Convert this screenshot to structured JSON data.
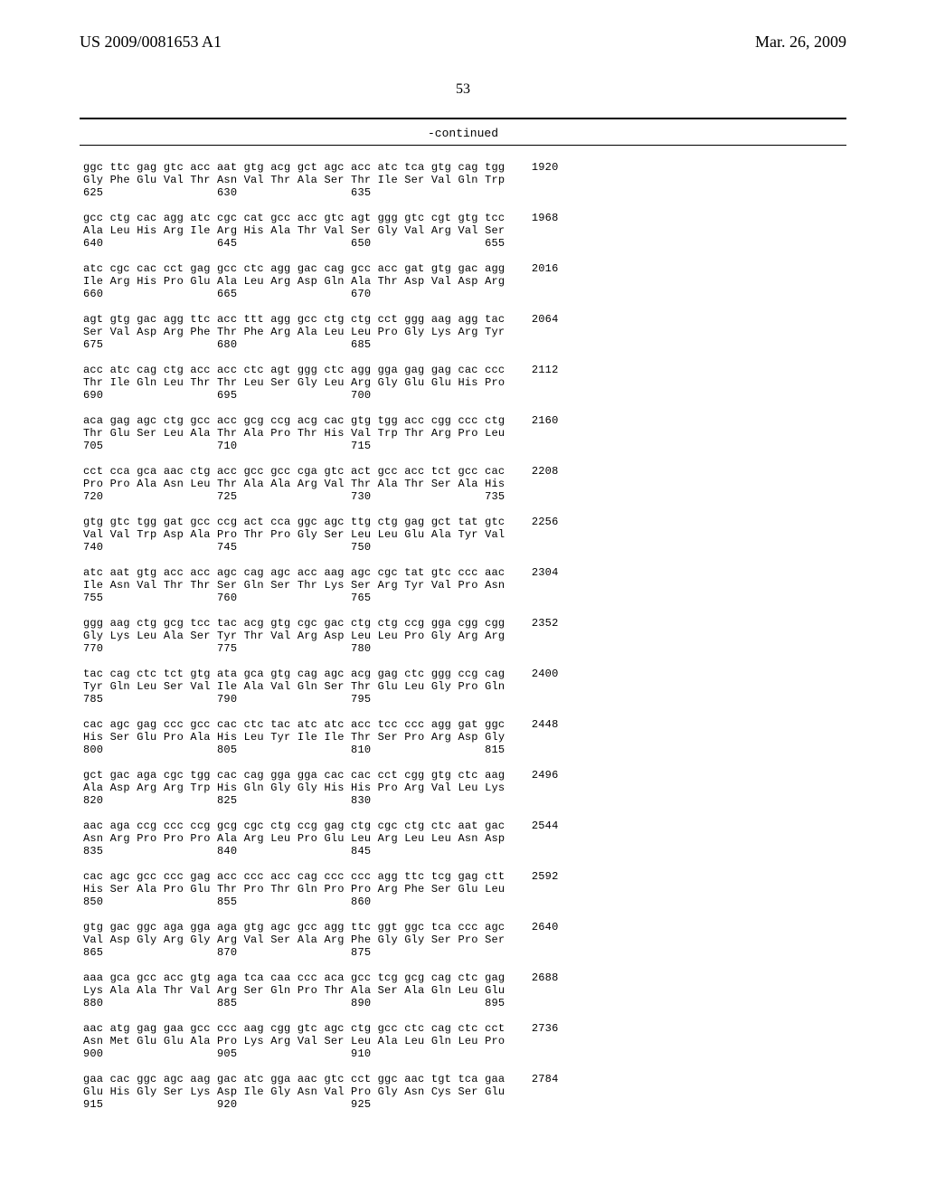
{
  "header": {
    "left": "US 2009/0081653 A1",
    "right": "Mar. 26, 2009"
  },
  "page_number": "53",
  "continued_label": "-continued",
  "blocks": [
    {
      "codon": "ggc ttc gag gtc acc aat gtg acg gct agc acc atc tca gtg cag tgg",
      "amino": "Gly Phe Glu Val Thr Asn Val Thr Ala Ser Thr Ile Ser Val Gln Trp",
      "pos": "625                 630                 635",
      "num": "1920"
    },
    {
      "codon": "gcc ctg cac agg atc cgc cat gcc acc gtc agt ggg gtc cgt gtg tcc",
      "amino": "Ala Leu His Arg Ile Arg His Ala Thr Val Ser Gly Val Arg Val Ser",
      "pos": "640                 645                 650                 655",
      "num": "1968"
    },
    {
      "codon": "atc cgc cac cct gag gcc ctc agg gac cag gcc acc gat gtg gac agg",
      "amino": "Ile Arg His Pro Glu Ala Leu Arg Asp Gln Ala Thr Asp Val Asp Arg",
      "pos": "660                 665                 670",
      "num": "2016"
    },
    {
      "codon": "agt gtg gac agg ttc acc ttt agg gcc ctg ctg cct ggg aag agg tac",
      "amino": "Ser Val Asp Arg Phe Thr Phe Arg Ala Leu Leu Pro Gly Lys Arg Tyr",
      "pos": "675                 680                 685",
      "num": "2064"
    },
    {
      "codon": "acc atc cag ctg acc acc ctc agt ggg ctc agg gga gag gag cac ccc",
      "amino": "Thr Ile Gln Leu Thr Thr Leu Ser Gly Leu Arg Gly Glu Glu His Pro",
      "pos": "690                 695                 700",
      "num": "2112"
    },
    {
      "codon": "aca gag agc ctg gcc acc gcg ccg acg cac gtg tgg acc cgg ccc ctg",
      "amino": "Thr Glu Ser Leu Ala Thr Ala Pro Thr His Val Trp Thr Arg Pro Leu",
      "pos": "705                 710                 715",
      "num": "2160"
    },
    {
      "codon": "cct cca gca aac ctg acc gcc gcc cga gtc act gcc acc tct gcc cac",
      "amino": "Pro Pro Ala Asn Leu Thr Ala Ala Arg Val Thr Ala Thr Ser Ala His",
      "pos": "720                 725                 730                 735",
      "num": "2208"
    },
    {
      "codon": "gtg gtc tgg gat gcc ccg act cca ggc agc ttg ctg gag gct tat gtc",
      "amino": "Val Val Trp Asp Ala Pro Thr Pro Gly Ser Leu Leu Glu Ala Tyr Val",
      "pos": "740                 745                 750",
      "num": "2256"
    },
    {
      "codon": "atc aat gtg acc acc agc cag agc acc aag agc cgc tat gtc ccc aac",
      "amino": "Ile Asn Val Thr Thr Ser Gln Ser Thr Lys Ser Arg Tyr Val Pro Asn",
      "pos": "755                 760                 765",
      "num": "2304"
    },
    {
      "codon": "ggg aag ctg gcg tcc tac acg gtg cgc gac ctg ctg ccg gga cgg cgg",
      "amino": "Gly Lys Leu Ala Ser Tyr Thr Val Arg Asp Leu Leu Pro Gly Arg Arg",
      "pos": "770                 775                 780",
      "num": "2352"
    },
    {
      "codon": "tac cag ctc tct gtg ata gca gtg cag agc acg gag ctc ggg ccg cag",
      "amino": "Tyr Gln Leu Ser Val Ile Ala Val Gln Ser Thr Glu Leu Gly Pro Gln",
      "pos": "785                 790                 795",
      "num": "2400"
    },
    {
      "codon": "cac agc gag ccc gcc cac ctc tac atc atc acc tcc ccc agg gat ggc",
      "amino": "His Ser Glu Pro Ala His Leu Tyr Ile Ile Thr Ser Pro Arg Asp Gly",
      "pos": "800                 805                 810                 815",
      "num": "2448"
    },
    {
      "codon": "gct gac aga cgc tgg cac cag gga gga cac cac cct cgg gtg ctc aag",
      "amino": "Ala Asp Arg Arg Trp His Gln Gly Gly His His Pro Arg Val Leu Lys",
      "pos": "820                 825                 830",
      "num": "2496"
    },
    {
      "codon": "aac aga ccg ccc ccg gcg cgc ctg ccg gag ctg cgc ctg ctc aat gac",
      "amino": "Asn Arg Pro Pro Pro Ala Arg Leu Pro Glu Leu Arg Leu Leu Asn Asp",
      "pos": "835                 840                 845",
      "num": "2544"
    },
    {
      "codon": "cac agc gcc ccc gag acc ccc acc cag ccc ccc agg ttc tcg gag ctt",
      "amino": "His Ser Ala Pro Glu Thr Pro Thr Gln Pro Pro Arg Phe Ser Glu Leu",
      "pos": "850                 855                 860",
      "num": "2592"
    },
    {
      "codon": "gtg gac ggc aga gga aga gtg agc gcc agg ttc ggt ggc tca ccc agc",
      "amino": "Val Asp Gly Arg Gly Arg Val Ser Ala Arg Phe Gly Gly Ser Pro Ser",
      "pos": "865                 870                 875",
      "num": "2640"
    },
    {
      "codon": "aaa gca gcc acc gtg aga tca caa ccc aca gcc tcg gcg cag ctc gag",
      "amino": "Lys Ala Ala Thr Val Arg Ser Gln Pro Thr Ala Ser Ala Gln Leu Glu",
      "pos": "880                 885                 890                 895",
      "num": "2688"
    },
    {
      "codon": "aac atg gag gaa gcc ccc aag cgg gtc agc ctg gcc ctc cag ctc cct",
      "amino": "Asn Met Glu Glu Ala Pro Lys Arg Val Ser Leu Ala Leu Gln Leu Pro",
      "pos": "900                 905                 910",
      "num": "2736"
    },
    {
      "codon": "gaa cac ggc agc aag gac atc gga aac gtc cct ggc aac tgt tca gaa",
      "amino": "Glu His Gly Ser Lys Asp Ile Gly Asn Val Pro Gly Asn Cys Ser Glu",
      "pos": "915                 920                 925",
      "num": "2784"
    }
  ]
}
